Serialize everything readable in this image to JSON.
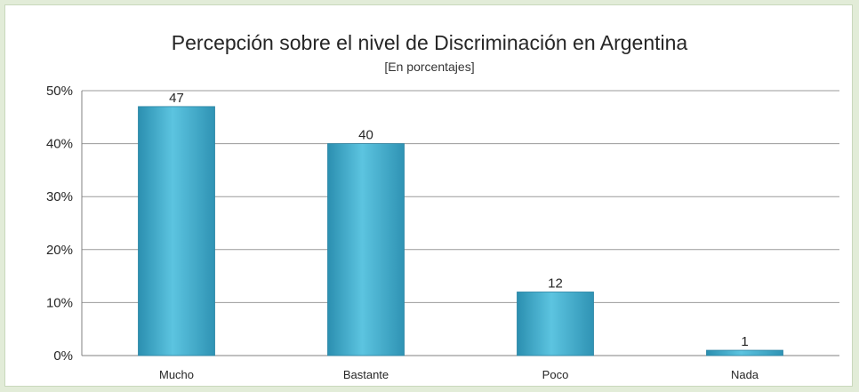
{
  "chart_data": {
    "type": "bar",
    "title": "Percepción sobre el nivel de Discriminación en Argentina",
    "subtitle": "[En porcentajes]",
    "categories": [
      "Mucho",
      "Bastante",
      "Poco",
      "Nada"
    ],
    "values": [
      47,
      40,
      12,
      1
    ],
    "data_labels": [
      "47",
      "40",
      "12",
      "1"
    ],
    "ylim": [
      0,
      50
    ],
    "yticks": [
      "0%",
      "10%",
      "20%",
      "30%",
      "40%",
      "50%"
    ],
    "ytick_values": [
      0,
      10,
      20,
      30,
      40,
      50
    ],
    "grid": true,
    "legend": "none",
    "bar_color": "#4bb8d6"
  }
}
